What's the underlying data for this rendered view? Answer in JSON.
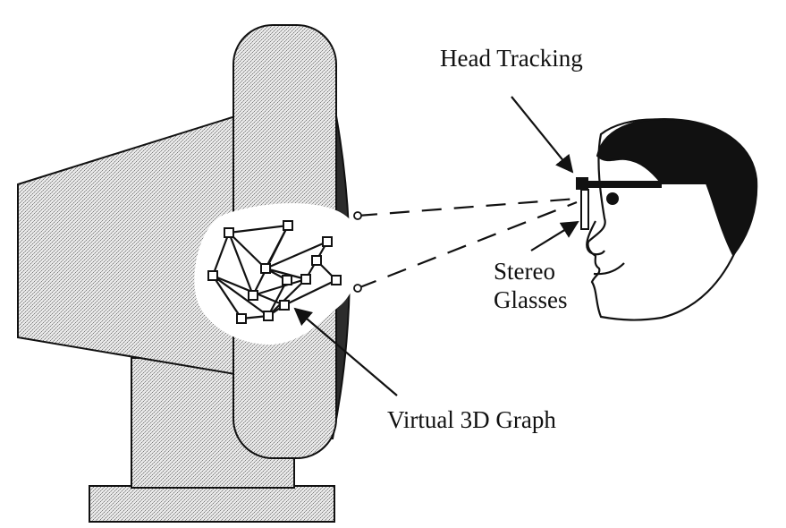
{
  "diagram": {
    "labels": {
      "head_tracking": "Head Tracking",
      "stereo_line1": "Stereo",
      "stereo_line2": "Glasses",
      "virtual_graph": "Virtual 3D Graph"
    },
    "colors": {
      "ink": "#111111",
      "stipple_light": "#e9e9e9",
      "stipple_dark": "#7d7d7d",
      "screen_face": "#2c2c2c",
      "background": "#ffffff"
    }
  }
}
